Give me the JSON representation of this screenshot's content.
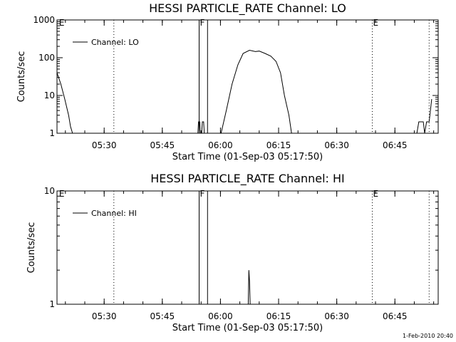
{
  "chart_data": [
    {
      "type": "line",
      "title": "HESSI PARTICLE_RATE Channel: LO",
      "xlabel": "Start Time (01-Sep-03 05:17:50)",
      "ylabel": "Counts/sec",
      "y_scale": "log",
      "ylim": [
        1,
        1000
      ],
      "y_ticks": [
        {
          "value": 1,
          "label": "1"
        },
        {
          "value": 10,
          "label": "10"
        },
        {
          "value": 100,
          "label": "100"
        },
        {
          "value": 1000,
          "label": "1000"
        }
      ],
      "xlim": [
        "05:17:50",
        "06:56:10"
      ],
      "x_ticks": [
        "05:30",
        "05:45",
        "06:00",
        "06:15",
        "06:30",
        "06:45"
      ],
      "legend": {
        "position": "top-left",
        "entries": [
          "Channel: LO"
        ]
      },
      "markers": [
        {
          "time": "05:18:10",
          "label": "E",
          "style": "text"
        },
        {
          "time": "05:32:30",
          "label": "",
          "style": "dotted"
        },
        {
          "time": "05:54:30",
          "label": "F",
          "style": "solid"
        },
        {
          "time": "05:56:40",
          "label": "",
          "style": "solid"
        },
        {
          "time": "06:39:10",
          "label": "E",
          "style": "dotted"
        },
        {
          "time": "06:53:50",
          "label": "",
          "style": "dotted"
        }
      ],
      "series": [
        {
          "name": "Channel: LO",
          "segments": [
            [
              [
                "05:17:50",
                40
              ],
              [
                "05:18:50",
                20
              ],
              [
                "05:19:50",
                8
              ],
              [
                "05:20:50",
                3
              ],
              [
                "05:21:20",
                1.5
              ],
              [
                "05:21:50",
                1
              ]
            ],
            [
              [
                "05:54:10",
                1
              ],
              [
                "05:54:20",
                2
              ],
              [
                "05:54:40",
                2
              ],
              [
                "05:54:50",
                1
              ],
              [
                "05:55:10",
                1
              ],
              [
                "05:55:20",
                2
              ],
              [
                "05:55:40",
                2
              ],
              [
                "05:55:50",
                1
              ]
            ],
            [
              [
                "06:00:10",
                1
              ],
              [
                "06:01:30",
                4
              ],
              [
                "06:03:00",
                20
              ],
              [
                "06:04:30",
                65
              ],
              [
                "06:05:50",
                130
              ],
              [
                "06:07:30",
                158
              ],
              [
                "06:09:00",
                145
              ],
              [
                "06:10:00",
                150
              ],
              [
                "06:11:30",
                130
              ],
              [
                "06:13:00",
                110
              ],
              [
                "06:14:20",
                80
              ],
              [
                "06:15:30",
                40
              ],
              [
                "06:16:30",
                10
              ],
              [
                "06:17:40",
                3
              ],
              [
                "06:18:20",
                1
              ]
            ],
            [
              [
                "06:50:40",
                1
              ],
              [
                "06:51:10",
                2
              ],
              [
                "06:52:20",
                2
              ],
              [
                "06:52:40",
                1
              ],
              [
                "06:53:10",
                2
              ],
              [
                "06:53:50",
                2
              ],
              [
                "06:54:10",
                4
              ],
              [
                "06:54:30",
                8
              ]
            ]
          ]
        }
      ]
    },
    {
      "type": "line",
      "title": "HESSI PARTICLE_RATE Channel: HI",
      "xlabel": "Start Time (01-Sep-03 05:17:50)",
      "ylabel": "Counts/sec",
      "y_scale": "log",
      "ylim": [
        1,
        10
      ],
      "y_ticks": [
        {
          "value": 1,
          "label": "1"
        },
        {
          "value": 10,
          "label": "10"
        }
      ],
      "xlim": [
        "05:17:50",
        "06:56:10"
      ],
      "x_ticks": [
        "05:30",
        "05:45",
        "06:00",
        "06:15",
        "06:30",
        "06:45"
      ],
      "legend": {
        "position": "top-left",
        "entries": [
          "Channel: HI"
        ]
      },
      "markers": [
        {
          "time": "05:18:10",
          "label": "E",
          "style": "text"
        },
        {
          "time": "05:32:30",
          "label": "",
          "style": "dotted"
        },
        {
          "time": "05:54:30",
          "label": "F",
          "style": "solid"
        },
        {
          "time": "05:56:40",
          "label": "",
          "style": "solid"
        },
        {
          "time": "06:39:10",
          "label": "E",
          "style": "dotted"
        },
        {
          "time": "06:53:50",
          "label": "",
          "style": "dotted"
        }
      ],
      "series": [
        {
          "name": "Channel: HI",
          "segments": [
            [
              [
                "06:07:10",
                1
              ],
              [
                "06:07:20",
                2
              ],
              [
                "06:07:30",
                1.6
              ],
              [
                "06:07:40",
                1
              ]
            ]
          ]
        }
      ]
    }
  ],
  "footer": {
    "timestamp": "1-Feb-2010 20:40"
  }
}
